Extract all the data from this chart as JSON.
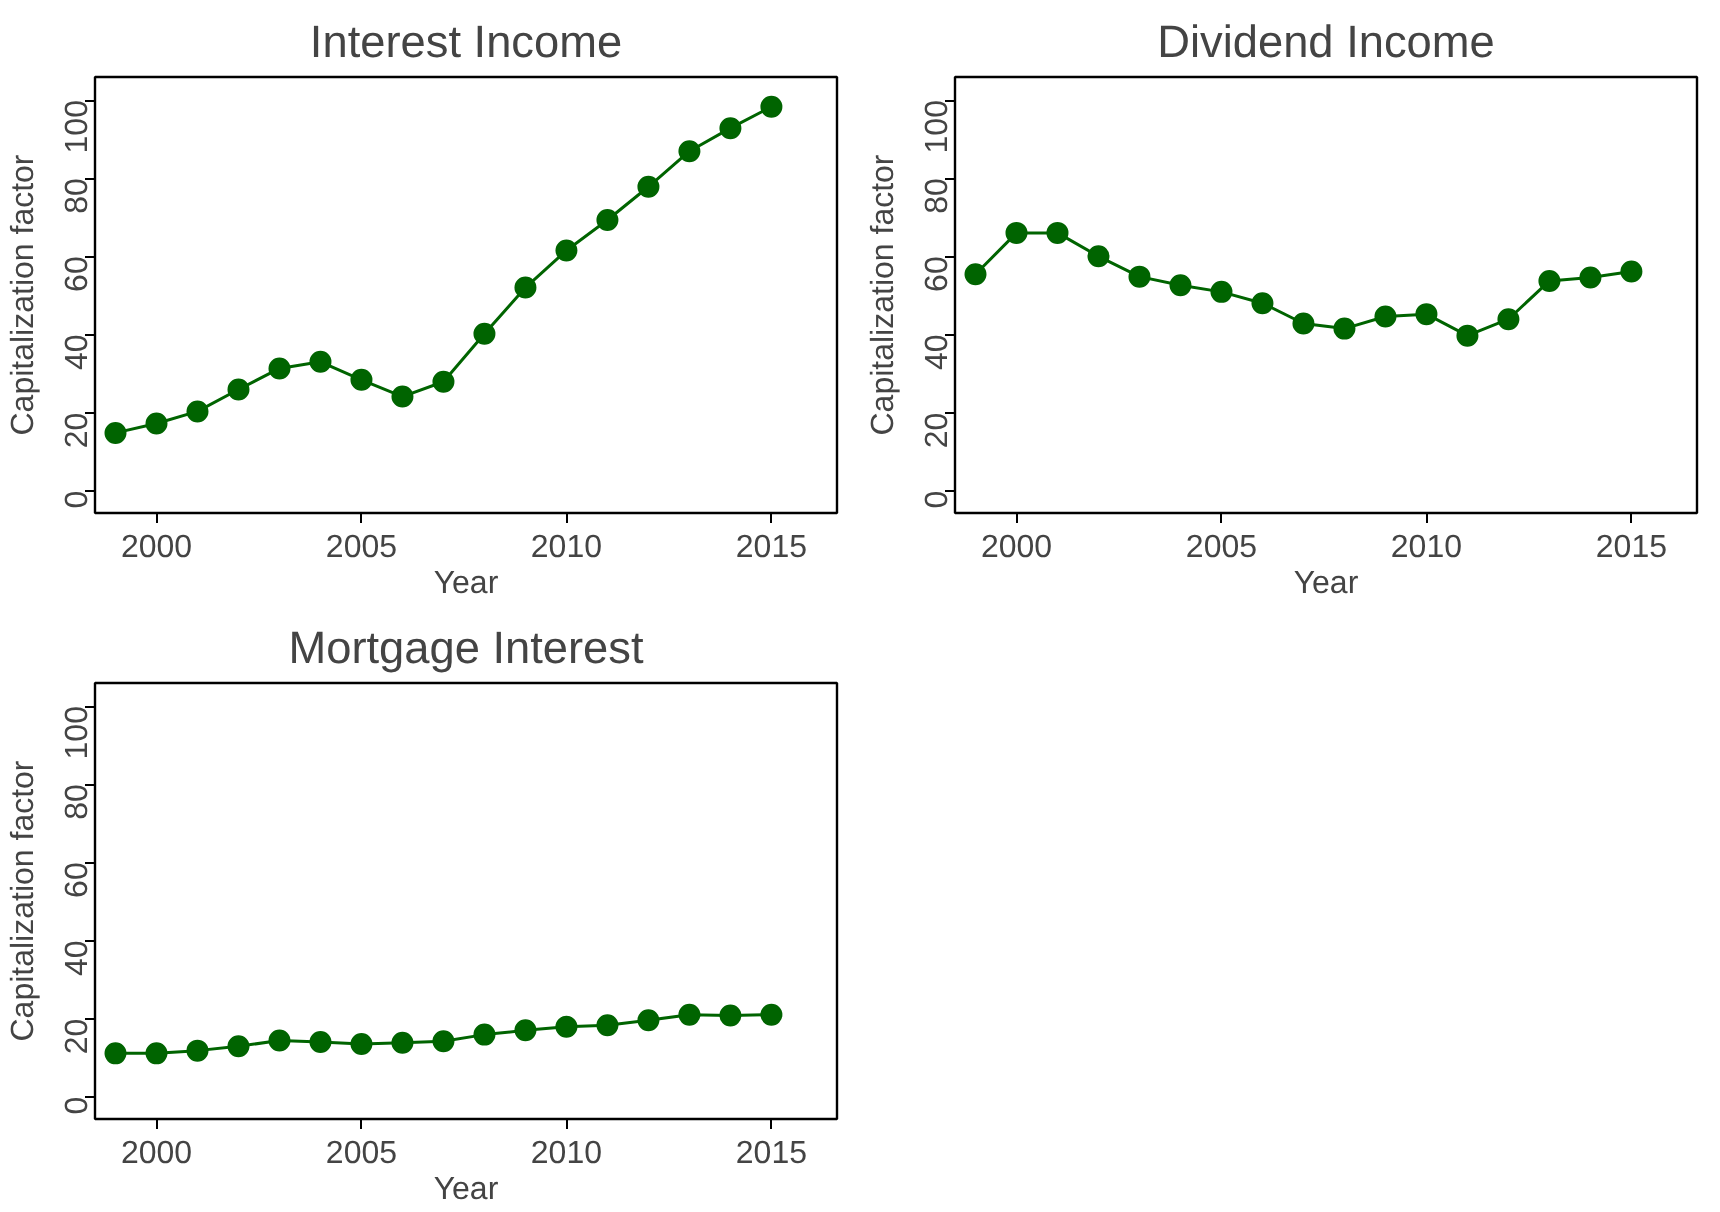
{
  "chart_data": [
    {
      "type": "line",
      "title": "Interest Income",
      "xlabel": "Year",
      "ylabel": "Capitalization factor",
      "marker": "circle",
      "grid": false,
      "xlim": [
        1998.5,
        2016.6
      ],
      "ylim": [
        -5.7,
        105.9
      ],
      "xticks": [
        2000,
        2005,
        2010,
        2015
      ],
      "yticks": [
        0,
        20,
        40,
        60,
        80,
        100
      ],
      "x": [
        1999,
        2000,
        2001,
        2002,
        2003,
        2004,
        2005,
        2006,
        2007,
        2008,
        2009,
        2010,
        2011,
        2012,
        2013,
        2014,
        2015
      ],
      "series": [
        {
          "color": "#006400",
          "values": [
            14.8,
            17.2,
            20.3,
            25.9,
            31.3,
            33.0,
            28.4,
            24.1,
            27.9,
            40.2,
            52.0,
            61.5,
            69.3,
            77.8,
            86.9,
            92.8,
            98.3
          ]
        }
      ]
    },
    {
      "type": "line",
      "title": "Dividend Income",
      "xlabel": "Year",
      "ylabel": "Capitalization factor",
      "marker": "circle",
      "grid": false,
      "xlim": [
        1998.5,
        2016.6
      ],
      "ylim": [
        -5.7,
        105.9
      ],
      "xticks": [
        2000,
        2005,
        2010,
        2015
      ],
      "yticks": [
        0,
        20,
        40,
        60,
        80,
        100
      ],
      "x": [
        1999,
        2000,
        2001,
        2002,
        2003,
        2004,
        2005,
        2006,
        2007,
        2008,
        2009,
        2010,
        2011,
        2012,
        2013,
        2014,
        2015
      ],
      "series": [
        {
          "color": "#006400",
          "values": [
            55.4,
            66.0,
            66.0,
            60.0,
            54.8,
            52.6,
            50.9,
            48.0,
            42.8,
            41.5,
            44.6,
            45.2,
            39.7,
            43.9,
            53.7,
            54.6,
            56.1
          ]
        }
      ]
    },
    {
      "type": "line",
      "title": "Mortgage Interest",
      "xlabel": "Year",
      "ylabel": "Capitalization factor",
      "marker": "circle",
      "grid": false,
      "xlim": [
        1998.5,
        2016.6
      ],
      "ylim": [
        -5.7,
        105.9
      ],
      "xticks": [
        2000,
        2005,
        2010,
        2015
      ],
      "yticks": [
        0,
        20,
        40,
        60,
        80,
        100
      ],
      "x": [
        1999,
        2000,
        2001,
        2002,
        2003,
        2004,
        2005,
        2006,
        2007,
        2008,
        2009,
        2010,
        2011,
        2012,
        2013,
        2014,
        2015
      ],
      "series": [
        {
          "color": "#006400",
          "values": [
            11.1,
            11.1,
            11.8,
            12.9,
            14.4,
            14.0,
            13.5,
            13.8,
            14.2,
            15.9,
            17.0,
            17.9,
            18.3,
            19.6,
            21.0,
            20.8,
            21.0
          ]
        }
      ]
    }
  ]
}
